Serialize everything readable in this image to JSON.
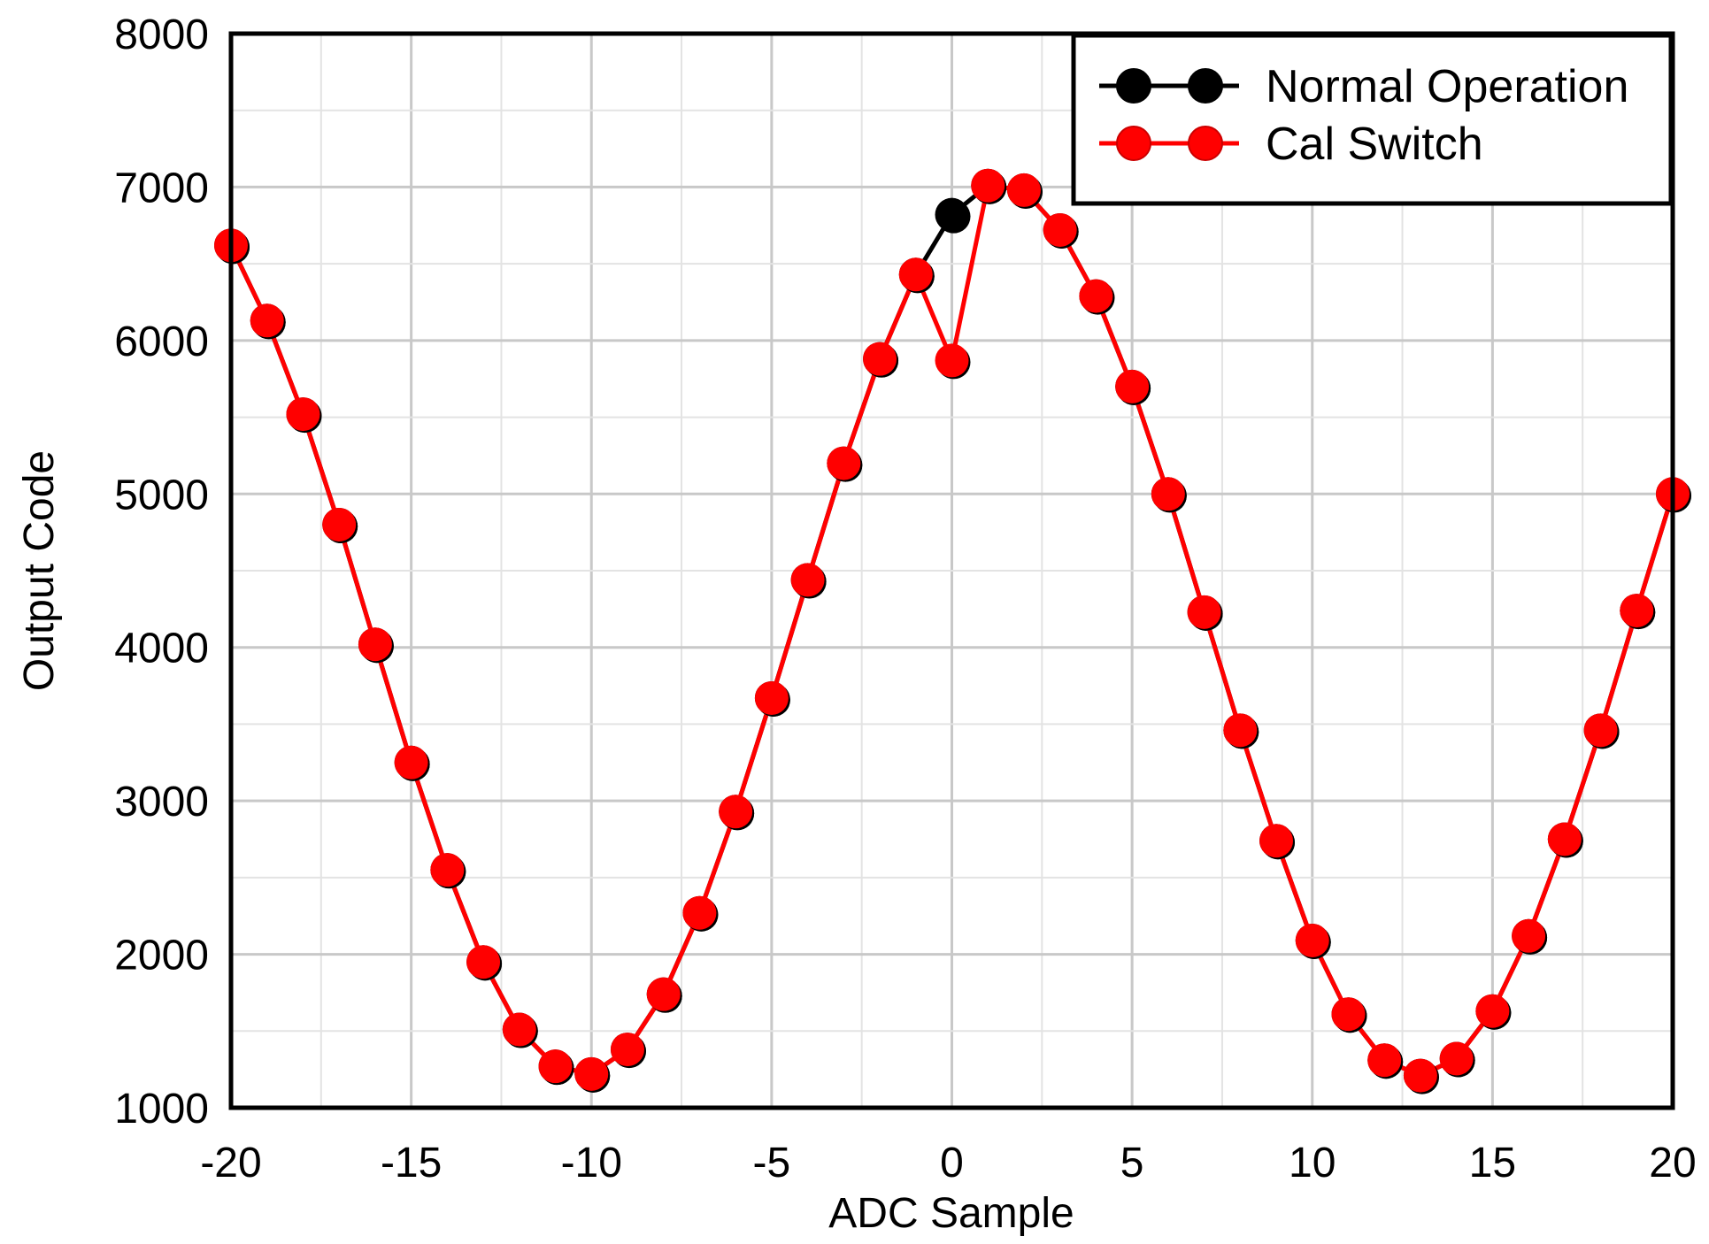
{
  "chart_data": {
    "type": "line",
    "title": "",
    "xlabel": "ADC Sample",
    "ylabel": "Output Code",
    "xlim": [
      -20,
      20
    ],
    "ylim": [
      1000,
      8000
    ],
    "xticks": [
      -20,
      -15,
      -10,
      -5,
      0,
      5,
      10,
      15,
      20
    ],
    "xtick_labels": [
      "-20",
      "-15",
      "-10",
      "-5",
      "0",
      "5",
      "10",
      "15",
      "20"
    ],
    "yticks": [
      1000,
      2000,
      3000,
      4000,
      5000,
      6000,
      7000,
      8000
    ],
    "ytick_labels": [
      "1000",
      "2000",
      "3000",
      "4000",
      "5000",
      "6000",
      "7000",
      "8000"
    ],
    "grid": true,
    "legend_position": "top-right",
    "x": [
      -20,
      -19,
      -18,
      -17,
      -16,
      -15,
      -14,
      -13,
      -12,
      -11,
      -10,
      -9,
      -8,
      -7,
      -6,
      -5,
      -4,
      -3,
      -2,
      -1,
      0,
      1,
      2,
      3,
      4,
      5,
      6,
      7,
      8,
      9,
      10,
      11,
      12,
      13,
      14,
      15,
      16,
      17,
      18,
      19,
      20
    ],
    "series": [
      {
        "name": "Normal Operation",
        "color": "#000000",
        "values": [
          6620,
          6130,
          5520,
          4800,
          4020,
          3250,
          2550,
          1950,
          1510,
          1270,
          1220,
          1380,
          1740,
          2270,
          2930,
          3670,
          4440,
          5200,
          5880,
          6430,
          6820,
          7010,
          6980,
          6720,
          6290,
          5700,
          5000,
          4230,
          3460,
          2740,
          2090,
          1610,
          1310,
          1210,
          1320,
          1630,
          2120,
          2750,
          3460,
          4240,
          5000
        ]
      },
      {
        "name": "Cal Switch",
        "color": "#ff0000",
        "values": [
          6620,
          6130,
          5520,
          4800,
          4020,
          3250,
          2550,
          1950,
          1510,
          1270,
          1220,
          1380,
          1740,
          2270,
          2930,
          3670,
          4440,
          5200,
          5880,
          6430,
          5870,
          7010,
          6980,
          6720,
          6290,
          5700,
          5000,
          4230,
          3460,
          2740,
          2090,
          1610,
          1310,
          1210,
          1320,
          1630,
          2120,
          2750,
          3460,
          4240,
          5000
        ]
      }
    ]
  }
}
